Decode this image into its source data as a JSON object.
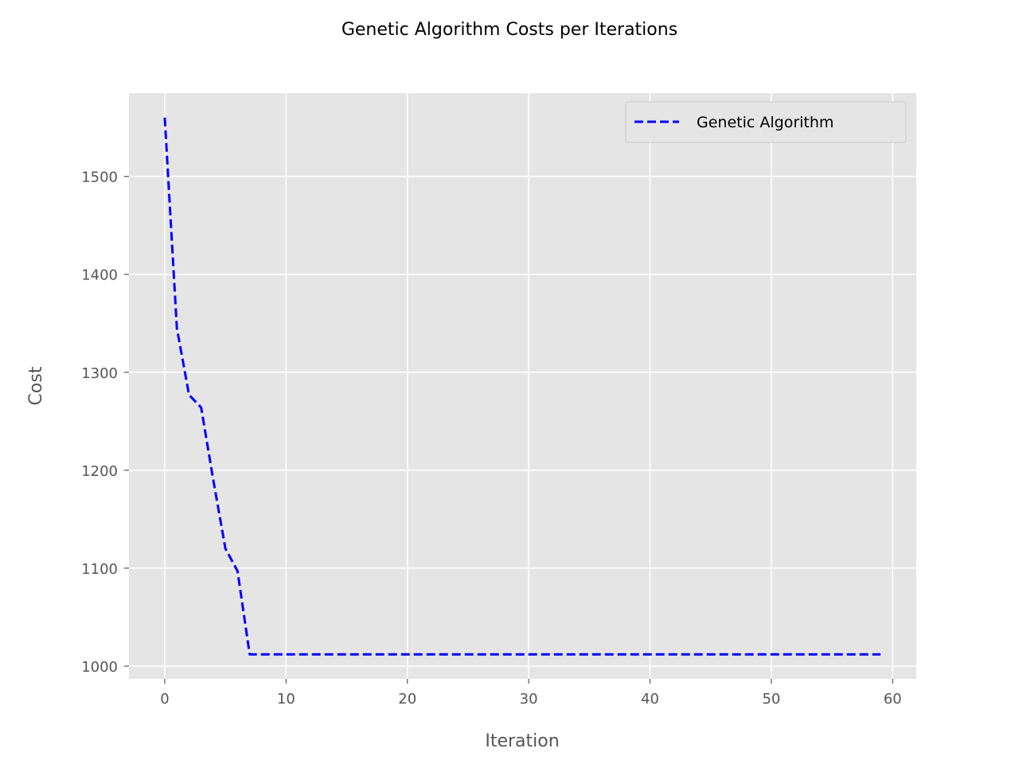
{
  "chart_data": {
    "type": "line",
    "title": "Genetic Algorithm Costs per Iterations",
    "xlabel": "Iteration",
    "ylabel": "Cost",
    "xlim": [
      -2.95,
      61.95
    ],
    "ylim": [
      987,
      1585
    ],
    "xticks": [
      0,
      10,
      20,
      30,
      40,
      50,
      60
    ],
    "yticks": [
      1000,
      1100,
      1200,
      1300,
      1400,
      1500
    ],
    "grid": true,
    "legend_position": "top-right",
    "series": [
      {
        "name": "Genetic Algorithm",
        "color": "#0000ff",
        "line_style": "dashed",
        "x": [
          0,
          1,
          2,
          3,
          4,
          5,
          6,
          7,
          8,
          9,
          10,
          11,
          12,
          13,
          14,
          15,
          16,
          17,
          18,
          19,
          20,
          21,
          22,
          23,
          24,
          25,
          26,
          27,
          28,
          29,
          30,
          31,
          32,
          33,
          34,
          35,
          36,
          37,
          38,
          39,
          40,
          41,
          42,
          43,
          44,
          45,
          46,
          47,
          48,
          49,
          50,
          51,
          52,
          53,
          54,
          55,
          56,
          57,
          58,
          59
        ],
        "y": [
          1560,
          1345,
          1277,
          1264,
          1190,
          1120,
          1097,
          1012,
          1012,
          1012,
          1012,
          1012,
          1012,
          1012,
          1012,
          1012,
          1012,
          1012,
          1012,
          1012,
          1012,
          1012,
          1012,
          1012,
          1012,
          1012,
          1012,
          1012,
          1012,
          1012,
          1012,
          1012,
          1012,
          1012,
          1012,
          1012,
          1012,
          1012,
          1012,
          1012,
          1012,
          1012,
          1012,
          1012,
          1012,
          1012,
          1012,
          1012,
          1012,
          1012,
          1012,
          1012,
          1012,
          1012,
          1012,
          1012,
          1012,
          1012,
          1012,
          1012
        ]
      }
    ]
  },
  "colors": {
    "plot_background": "#e5e5e5",
    "grid": "#ffffff",
    "series": "#0000ff"
  }
}
